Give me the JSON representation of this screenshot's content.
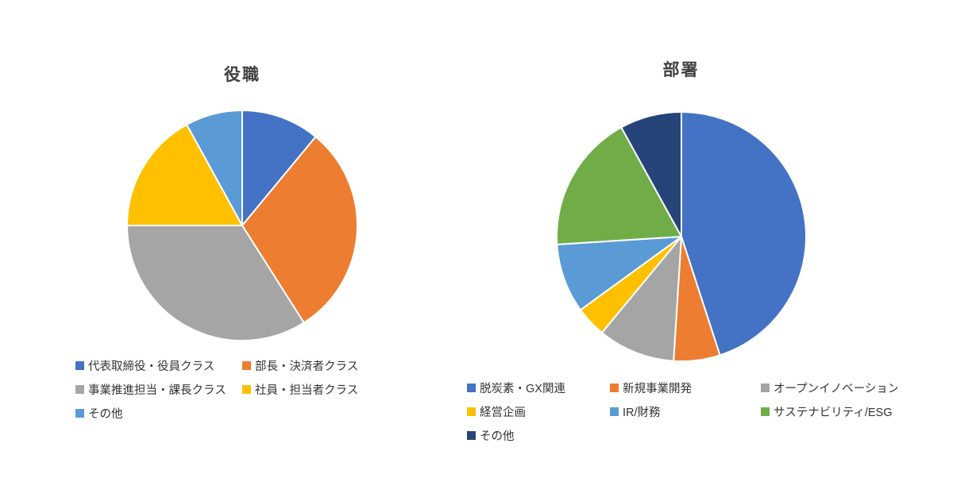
{
  "page": {
    "background_color": "#ffffff"
  },
  "chart_data": [
    {
      "type": "pie",
      "title": "役職",
      "start_angle": 0,
      "direction": "clockwise",
      "units": "percent",
      "legend_position": "bottom",
      "legend_columns": 2,
      "slices": [
        {
          "label": "代表取締役・役員クラス",
          "value": 11,
          "color": "#4472C4"
        },
        {
          "label": "部長・決済者クラス",
          "value": 30,
          "color": "#ED7D31"
        },
        {
          "label": "事業推進担当・課長クラス",
          "value": 34,
          "color": "#A5A5A5"
        },
        {
          "label": "社員・担当者クラス",
          "value": 17,
          "color": "#FFC000"
        },
        {
          "label": "その他",
          "value": 8,
          "color": "#5B9BD5"
        }
      ]
    },
    {
      "type": "pie",
      "title": "部署",
      "start_angle": 0,
      "direction": "clockwise",
      "units": "percent",
      "legend_position": "bottom",
      "legend_columns": 3,
      "slices": [
        {
          "label": "脱炭素・GX関連",
          "value": 45,
          "color": "#4472C4"
        },
        {
          "label": "新規事業開発",
          "value": 6,
          "color": "#ED7D31"
        },
        {
          "label": "オープンイノベーション",
          "value": 10,
          "color": "#A5A5A5"
        },
        {
          "label": "経営企画",
          "value": 4,
          "color": "#FFC000"
        },
        {
          "label": "IR/財務",
          "value": 9,
          "color": "#5B9BD5"
        },
        {
          "label": "サステナビリティ/ESG",
          "value": 18,
          "color": "#70AD47"
        },
        {
          "label": "その他",
          "value": 8,
          "color": "#264478"
        }
      ]
    }
  ]
}
